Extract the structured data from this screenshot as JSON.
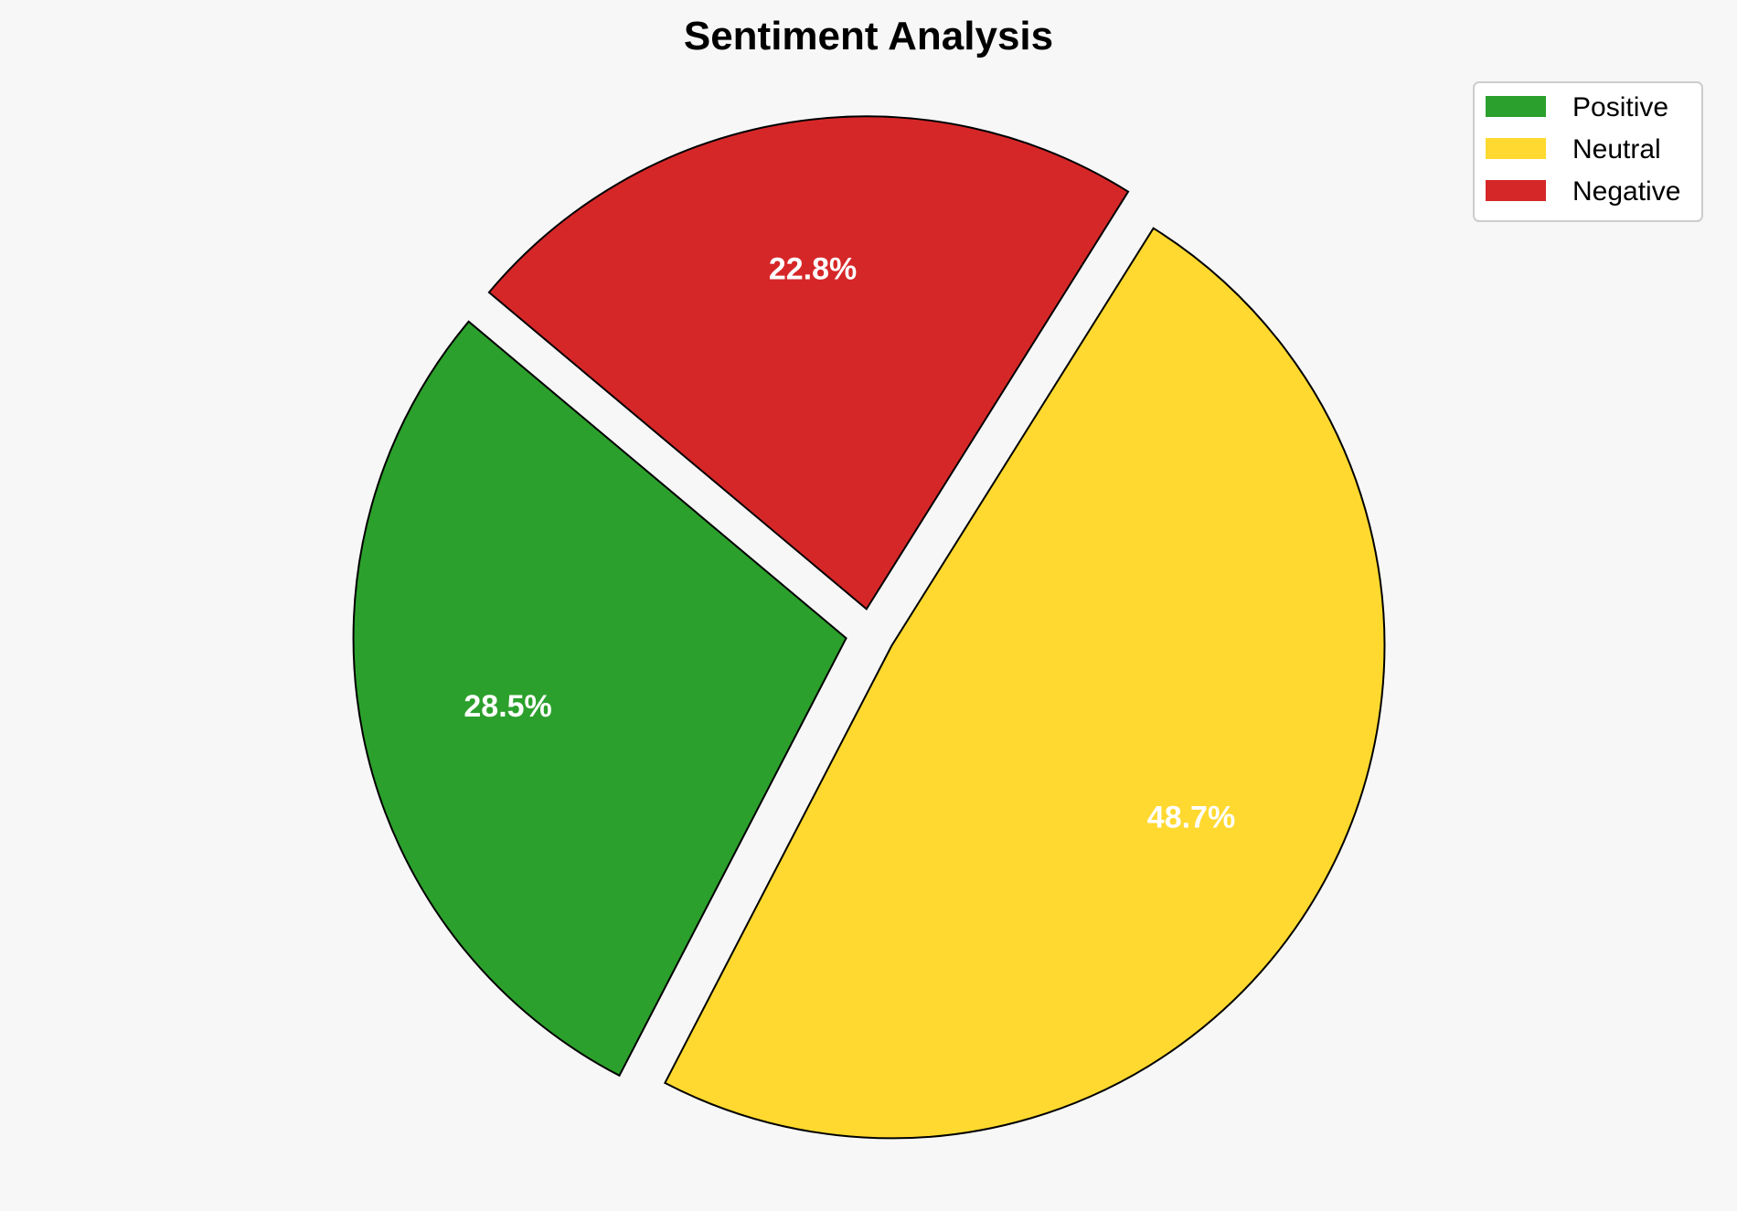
{
  "chart_data": {
    "type": "pie",
    "title": "Sentiment Analysis",
    "categories": [
      "Positive",
      "Neutral",
      "Negative"
    ],
    "values": [
      28.5,
      48.7,
      22.8
    ],
    "labels": [
      "28.5%",
      "48.7%",
      "22.8%"
    ],
    "colors": [
      "#2ca02c",
      "#ffd92f",
      "#d62728"
    ],
    "start_angle_deg": 140,
    "counterclockwise": true,
    "explode": [
      0.05,
      0.05,
      0.05
    ],
    "legend_position": "top-right"
  }
}
